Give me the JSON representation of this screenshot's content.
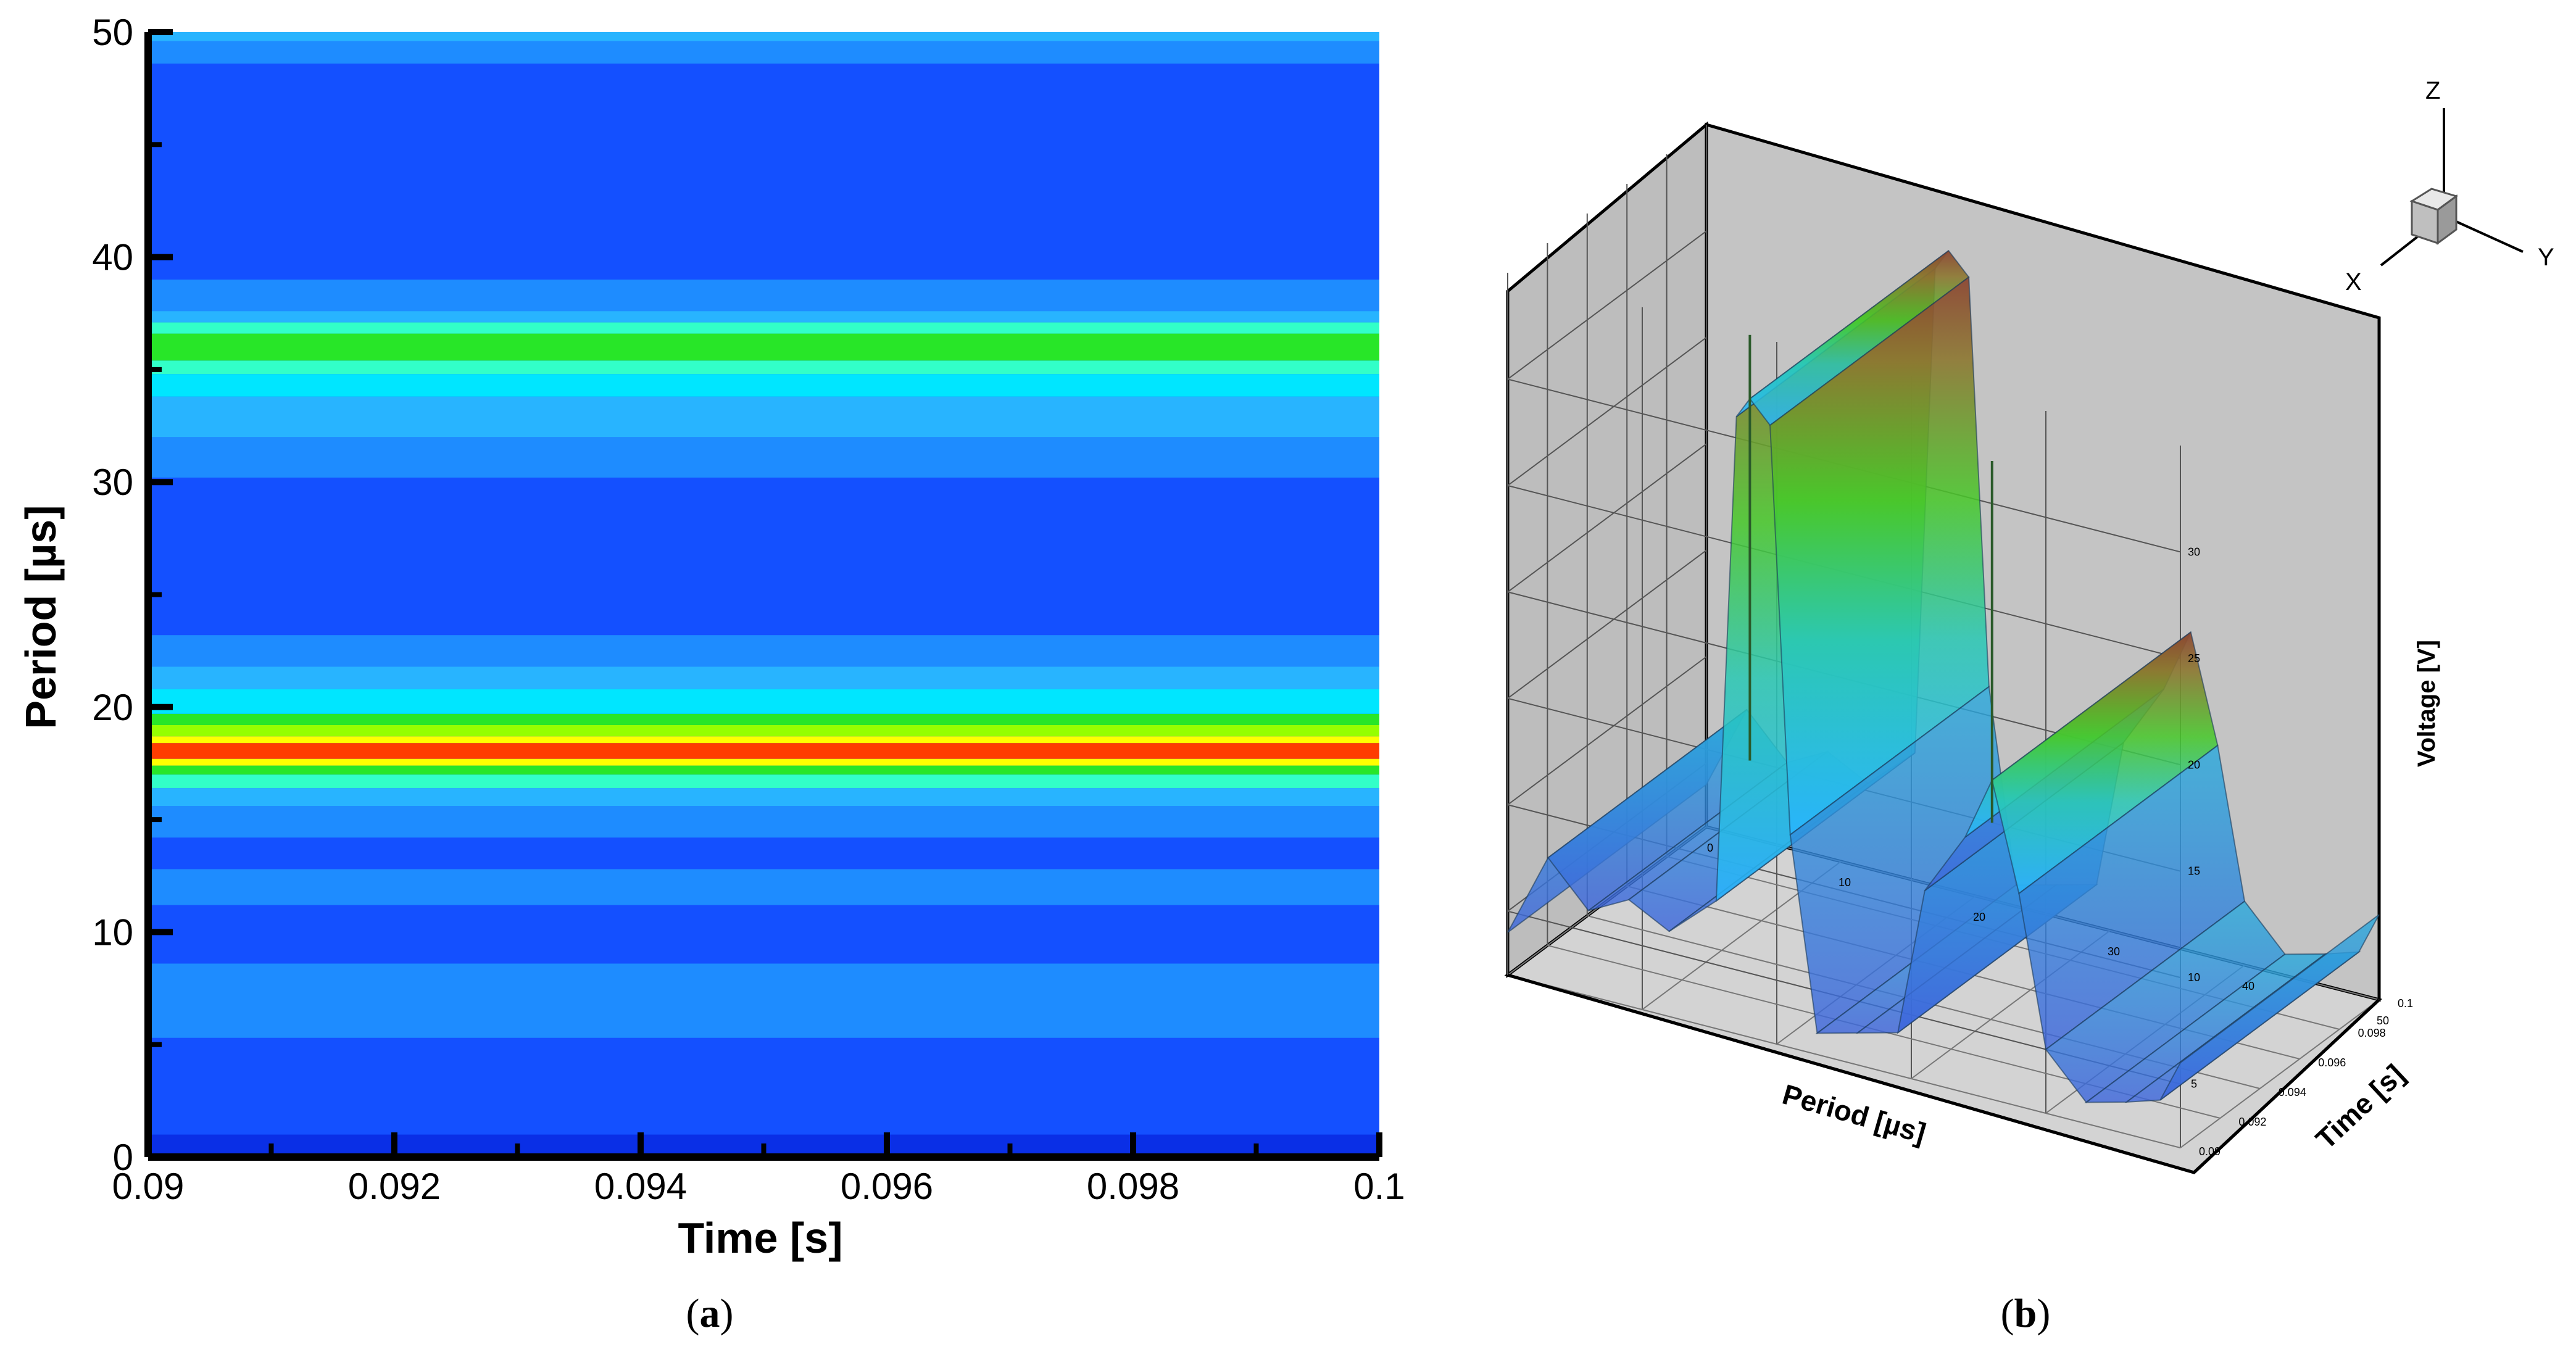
{
  "figure": {
    "panel_a_caption_open": "(",
    "panel_a_caption_letter": "a",
    "panel_a_caption_close": ")",
    "panel_b_caption_open": "(",
    "panel_b_caption_letter": "b",
    "panel_b_caption_close": ")"
  },
  "colormap": [
    "#0a2fe6",
    "#1450ff",
    "#1e8cff",
    "#28b4ff",
    "#00e6ff",
    "#32ffc8",
    "#28e628",
    "#96ff00",
    "#ffff00",
    "#ffa000",
    "#ff3c00",
    "#d20000"
  ],
  "chart_data": [
    {
      "type": "heatmap",
      "panel": "a",
      "title": "",
      "xlabel": "Time [s]",
      "ylabel": "Period [µs]",
      "xlim": [
        0.09,
        0.1
      ],
      "ylim": [
        0,
        50
      ],
      "x_ticks": [
        0.09,
        0.092,
        0.094,
        0.096,
        0.098,
        0.1
      ],
      "x_tick_labels": [
        "0.09",
        "0.092",
        "0.094",
        "0.096",
        "0.098",
        "0.1"
      ],
      "y_ticks": [
        0,
        10,
        20,
        30,
        40,
        50
      ],
      "y_tick_labels": [
        "0",
        "10",
        "20",
        "30",
        "40",
        "50"
      ],
      "background_level": 1,
      "bands": [
        {
          "y0": 0,
          "y1": 1,
          "level": 0
        },
        {
          "y0": 1,
          "y1": 5.3,
          "level": 1
        },
        {
          "y0": 5.3,
          "y1": 8.6,
          "level": 2
        },
        {
          "y0": 8.6,
          "y1": 11.2,
          "level": 1
        },
        {
          "y0": 11.2,
          "y1": 12.8,
          "level": 2
        },
        {
          "y0": 12.8,
          "y1": 14.2,
          "level": 1
        },
        {
          "y0": 14.2,
          "y1": 15.6,
          "level": 2
        },
        {
          "y0": 15.6,
          "y1": 16.4,
          "level": 3
        },
        {
          "y0": 16.4,
          "y1": 17,
          "level": 5
        },
        {
          "y0": 17,
          "y1": 17.4,
          "level": 6
        },
        {
          "y0": 17.4,
          "y1": 17.7,
          "level": 8
        },
        {
          "y0": 17.7,
          "y1": 18.4,
          "level": 10
        },
        {
          "y0": 18.4,
          "y1": 18.7,
          "level": 8
        },
        {
          "y0": 18.7,
          "y1": 19.2,
          "level": 7
        },
        {
          "y0": 19.2,
          "y1": 19.7,
          "level": 6
        },
        {
          "y0": 19.7,
          "y1": 20.8,
          "level": 4
        },
        {
          "y0": 20.8,
          "y1": 21.8,
          "level": 3
        },
        {
          "y0": 21.8,
          "y1": 23.2,
          "level": 2
        },
        {
          "y0": 23.2,
          "y1": 30.2,
          "level": 1
        },
        {
          "y0": 30.2,
          "y1": 32,
          "level": 2
        },
        {
          "y0": 32,
          "y1": 33.8,
          "level": 3
        },
        {
          "y0": 33.8,
          "y1": 34.8,
          "level": 4
        },
        {
          "y0": 34.8,
          "y1": 35.4,
          "level": 5
        },
        {
          "y0": 35.4,
          "y1": 36.6,
          "level": 6
        },
        {
          "y0": 36.6,
          "y1": 37.1,
          "level": 5
        },
        {
          "y0": 37.1,
          "y1": 37.6,
          "level": 3
        },
        {
          "y0": 37.6,
          "y1": 39,
          "level": 2
        },
        {
          "y0": 39,
          "y1": 48.6,
          "level": 1
        },
        {
          "y0": 48.6,
          "y1": 49.6,
          "level": 2
        },
        {
          "y0": 49.6,
          "y1": 50,
          "level": 3
        }
      ]
    },
    {
      "type": "surface3d",
      "panel": "b",
      "title": "",
      "xlabel": "Period [µs]",
      "ylabel": "Time [s]",
      "zlabel": "Voltage [V]",
      "x_ticks": [
        0,
        10,
        20,
        30,
        40,
        50
      ],
      "x_tick_labels": [
        "0",
        "10",
        "20",
        "30",
        "40",
        "50"
      ],
      "y_ticks": [
        0.09,
        0.092,
        0.094,
        0.096,
        0.098,
        0.1
      ],
      "y_tick_labels": [
        "0.09",
        "0.092",
        "0.094",
        "0.096",
        "0.098",
        "0.1"
      ],
      "z_ticks": [
        5,
        10,
        15,
        20,
        25,
        30
      ],
      "z_tick_labels": [
        "5",
        "10",
        "15",
        "20",
        "25",
        "30"
      ],
      "xlim": [
        0,
        50
      ],
      "ylim": [
        0.09,
        0.1
      ],
      "zlim": [
        2,
        35
      ],
      "grid": true,
      "profile": [
        {
          "period": 0,
          "voltage": 4
        },
        {
          "period": 3,
          "voltage": 8
        },
        {
          "period": 6,
          "voltage": 6
        },
        {
          "period": 9,
          "voltage": 7
        },
        {
          "period": 12,
          "voltage": 6
        },
        {
          "period": 15.5,
          "voltage": 8
        },
        {
          "period": 17,
          "voltage": 31
        },
        {
          "period": 18,
          "voltage": 32
        },
        {
          "period": 19.5,
          "voltage": 31
        },
        {
          "period": 21,
          "voltage": 12
        },
        {
          "period": 23,
          "voltage": 3
        },
        {
          "period": 26,
          "voltage": 3.5
        },
        {
          "period": 29,
          "voltage": 4
        },
        {
          "period": 31,
          "voltage": 11
        },
        {
          "period": 34,
          "voltage": 14
        },
        {
          "period": 36,
          "voltage": 17
        },
        {
          "period": 38,
          "voltage": 12
        },
        {
          "period": 40,
          "voltage": 5
        },
        {
          "period": 43,
          "voltage": 3
        },
        {
          "period": 46,
          "voltage": 3.5
        },
        {
          "period": 48.5,
          "voltage": 4
        },
        {
          "period": 50,
          "voltage": 6
        }
      ],
      "peaks": [
        {
          "period": 18,
          "voltage": 35
        },
        {
          "period": 36,
          "voltage": 32
        }
      ],
      "orientation_triad": {
        "labels": [
          "X",
          "Y",
          "Z"
        ]
      }
    }
  ]
}
